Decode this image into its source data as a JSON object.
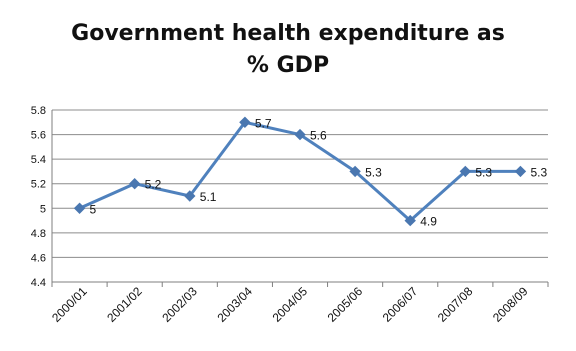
{
  "chart_data": {
    "type": "line",
    "title_lines": [
      "Government health expenditure as",
      "% GDP"
    ],
    "categories": [
      "2000/01",
      "2001/02",
      "2002/03",
      "2003/04",
      "2004/05",
      "2005/06",
      "2006/07",
      "2007/08",
      "2008/09"
    ],
    "series": [
      {
        "values": [
          5,
          5.2,
          5.1,
          5.7,
          5.6,
          5.3,
          4.9,
          5.3,
          5.3
        ],
        "data_labels": [
          "5",
          "5.2",
          "5.1",
          "5.7",
          "5.6",
          "5.3",
          "4.9",
          "5.3",
          "5.3"
        ]
      }
    ],
    "ylim": [
      4.4,
      5.8
    ],
    "yticks": [
      4.4,
      4.6,
      4.8,
      5,
      5.2,
      5.4,
      5.6,
      5.8
    ],
    "ytick_labels": [
      "4.4",
      "4.6",
      "4.8",
      "5",
      "5.2",
      "5.4",
      "5.6",
      "5.8"
    ],
    "grid": "horizontal",
    "legend": "none",
    "colors": {
      "line": "#4f81bd",
      "marker": "#4a77b0",
      "grid": "#8c8c8c",
      "text": "#111111",
      "axis": "#7f7f7f"
    }
  }
}
